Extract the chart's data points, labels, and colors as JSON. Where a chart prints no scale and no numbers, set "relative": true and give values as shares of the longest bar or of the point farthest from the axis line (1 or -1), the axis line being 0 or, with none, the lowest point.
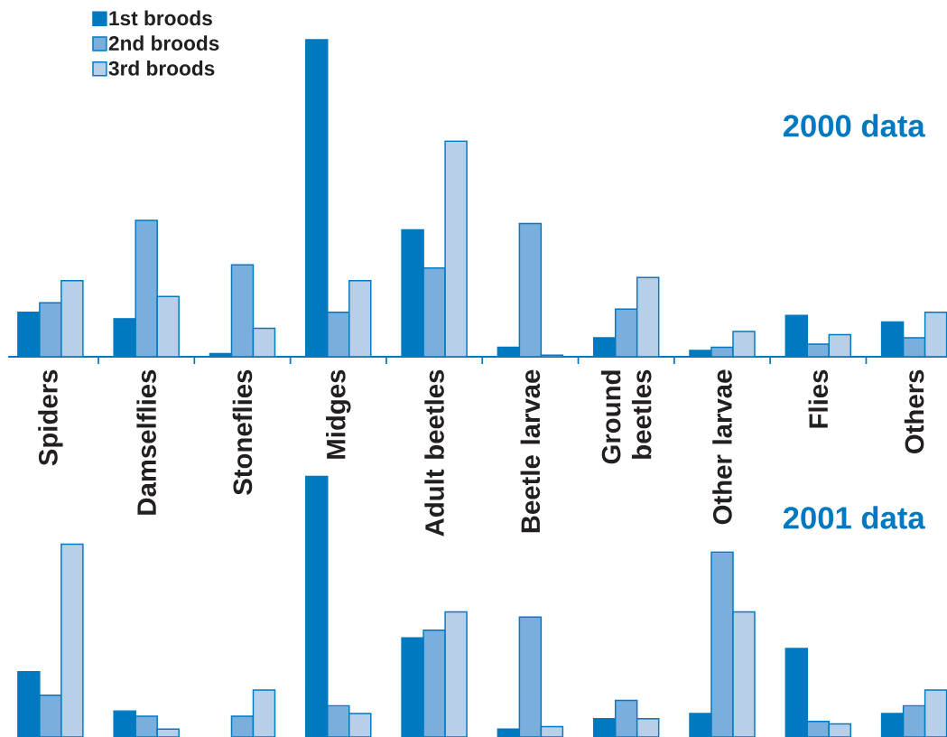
{
  "chart_data": [
    {
      "type": "bar",
      "title": "2000 data",
      "categories": [
        "Spiders",
        "Damselflies",
        "Stoneflies",
        "Midges",
        "Adult beetles",
        "Beetle larvae",
        "Ground beetles",
        "Other larvae",
        "Flies",
        "Others"
      ],
      "relative": true,
      "legend": "top left",
      "series": [
        {
          "name": "1st broods",
          "color": "#0079c1",
          "values": [
            0.14,
            0.12,
            0.01,
            1,
            0.4,
            0.03,
            0.06,
            0.02,
            0.13,
            0.11
          ]
        },
        {
          "name": "2nd broods",
          "color": "#7aaedc",
          "values": [
            0.17,
            0.43,
            0.29,
            0.14,
            0.28,
            0.42,
            0.15,
            0.03,
            0.04,
            0.06
          ]
        },
        {
          "name": "3rd broods",
          "color": "#b8cfea",
          "values": [
            0.24,
            0.19,
            0.09,
            0.24,
            0.68,
            0.005,
            0.25,
            0.08,
            0.07,
            0.14
          ]
        }
      ]
    },
    {
      "type": "bar",
      "title": "2001 data",
      "categories": [
        null,
        null,
        null,
        null,
        null,
        null,
        null,
        null,
        null,
        null
      ],
      "relative": true,
      "series": [
        {
          "color": "#0079c1",
          "values": [
            0.25,
            0.1,
            null,
            1,
            0.38,
            0.03,
            0.07,
            0.09,
            0.34,
            0.09
          ]
        },
        {
          "color": "#7aaedc",
          "values": [
            0.16,
            0.08,
            0.08,
            0.12,
            0.41,
            0.46,
            0.14,
            0.71,
            0.06,
            0.12
          ]
        },
        {
          "color": "#b8cfea",
          "values": [
            0.74,
            0.03,
            0.18,
            0.09,
            0.48,
            0.04,
            0.07,
            0.48,
            0.05,
            0.18
          ]
        }
      ]
    }
  ]
}
